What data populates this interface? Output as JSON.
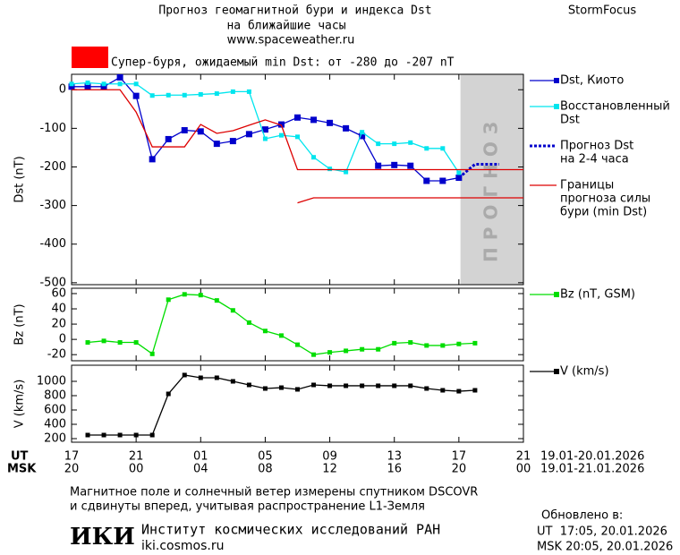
{
  "header": {
    "title": "Прогноз геомагнитной бури и индекса Dst",
    "subtitle": "на ближайшие часы",
    "url": "www.spaceweather.ru",
    "brand": "StormFocus"
  },
  "chart_data": [
    {
      "type": "line",
      "ylabel": "Dst (nT)",
      "banner": "Супер-буря, ожидаемый min Dst: от -280 до -207 nT",
      "banner_color": "#ff0000",
      "xlim": [
        0,
        28
      ],
      "ylim": [
        -505,
        40
      ],
      "yticks": [
        0,
        -100,
        -200,
        -300,
        -400,
        -500
      ],
      "forecast_band": [
        24.1,
        28
      ],
      "forecast_label": "ПРОГНОЗ",
      "band_color": "#d3d3d3",
      "series": [
        {
          "name": [
            "Dst, Киото"
          ],
          "color": "#0000cc",
          "marker": "square",
          "dash": false,
          "x": [
            0,
            1,
            2,
            3,
            4,
            5,
            6,
            7,
            8,
            9,
            10,
            11,
            12,
            13,
            14,
            15,
            16,
            17,
            18,
            19,
            20,
            21,
            22,
            23,
            24
          ],
          "values": [
            8,
            8,
            8,
            32,
            -16,
            -180,
            -128,
            -105,
            -108,
            -140,
            -133,
            -115,
            -103,
            -90,
            -72,
            -78,
            -86,
            -100,
            -120,
            -197,
            -195,
            -197,
            -236,
            -236,
            -228
          ]
        },
        {
          "name": [
            "Восстановленный",
            "Dst"
          ],
          "color": "#00e5ee",
          "marker": "small",
          "dash": false,
          "x": [
            0,
            1,
            2,
            3,
            4,
            5,
            6,
            7,
            8,
            9,
            10,
            11,
            12,
            13,
            14,
            15,
            16,
            17,
            18,
            19,
            20,
            21,
            22,
            23,
            24
          ],
          "values": [
            15,
            18,
            15,
            15,
            15,
            -15,
            -14,
            -14,
            -12,
            -10,
            -5,
            -5,
            -127,
            -118,
            -122,
            -175,
            -205,
            -213,
            -110,
            -140,
            -140,
            -137,
            -152,
            -152,
            -215
          ]
        },
        {
          "name": [
            "Прогноз Dst",
            "на 2-4 часа"
          ],
          "color": "#0000cc",
          "marker": "none",
          "dash": true,
          "x": [
            24,
            25,
            26.5
          ],
          "values": [
            -228,
            -193,
            -193
          ]
        },
        {
          "name": [
            "Границы",
            "прогноза силы",
            "бури (min Dst)"
          ],
          "color": "#dd0000",
          "marker": "none",
          "dash": false,
          "x": [
            0,
            3,
            4,
            5,
            7,
            8,
            9,
            10,
            11,
            12,
            13,
            14,
            28,
            null,
            14,
            15,
            28
          ],
          "values": [
            0,
            0,
            -58,
            -148,
            -148,
            -90,
            -113,
            -106,
            -92,
            -78,
            -92,
            -207,
            -207,
            null,
            -293,
            -280,
            -280
          ]
        }
      ]
    },
    {
      "type": "line",
      "ylabel": "Bz (nT)",
      "xlim": [
        0,
        28
      ],
      "ylim": [
        -28,
        67
      ],
      "yticks": [
        60,
        40,
        20,
        0,
        -20
      ],
      "series": [
        {
          "name": [
            "Bz (nT, GSM)"
          ],
          "color": "#00dd00",
          "marker": "small",
          "dash": false,
          "x": [
            1,
            2,
            3,
            4,
            5,
            6,
            7,
            8,
            9,
            10,
            11,
            12,
            13,
            14,
            15,
            16,
            17,
            18,
            19,
            20,
            21,
            22,
            23,
            24,
            25
          ],
          "values": [
            -4,
            -2,
            -4,
            -4,
            -19,
            52,
            59,
            58,
            51,
            38,
            22,
            11,
            5,
            -7,
            -20,
            -17,
            -15,
            -13,
            -13,
            -5,
            -4,
            -8,
            -8,
            -6,
            -5
          ]
        }
      ]
    },
    {
      "type": "line",
      "ylabel": "V (km/s)",
      "xlim": [
        0,
        28
      ],
      "ylim": [
        150,
        1225
      ],
      "yticks": [
        1000,
        800,
        600,
        400,
        200
      ],
      "xlabel_ut": "UT",
      "xlabel_msk": "MSK",
      "date_ut": "19.01-20.01.2026",
      "date_msk": "19.01-21.01.2026",
      "xticks": [
        {
          "value": 0,
          "label": "17"
        },
        {
          "value": 4,
          "label": "21"
        },
        {
          "value": 8,
          "label": "01"
        },
        {
          "value": 12,
          "label": "05"
        },
        {
          "value": 16,
          "label": "09"
        },
        {
          "value": 20,
          "label": "13"
        },
        {
          "value": 24,
          "label": "17"
        },
        {
          "value": 28,
          "label": "21"
        }
      ],
      "msk_labels": [
        "20",
        "00",
        "04",
        "08",
        "12",
        "16",
        "20",
        "00"
      ],
      "series": [
        {
          "name": [
            "V (km/s)"
          ],
          "color": "#000000",
          "marker": "small",
          "dash": false,
          "x": [
            1,
            2,
            3,
            4,
            5,
            6,
            7,
            8,
            9,
            10,
            11,
            12,
            13,
            14,
            15,
            16,
            17,
            18,
            19,
            20,
            21,
            22,
            23,
            24,
            25
          ],
          "values": [
            250,
            250,
            250,
            250,
            250,
            825,
            1088,
            1050,
            1050,
            1000,
            950,
            900,
            912,
            888,
            950,
            938,
            938,
            938,
            938,
            938,
            938,
            900,
            875,
            862,
            875
          ]
        }
      ]
    }
  ],
  "footer": {
    "note1": "Магнитное поле и солнечный ветер измерены спутником DSCOVR",
    "note2": "и сдвинуты вперед, учитывая распространение L1-Земля",
    "logo": "ИКИ",
    "institute": "Институт космических исследований РАН",
    "site": "iki.cosmos.ru",
    "updated": "Обновлено в:",
    "updated_ut": "UT  17:05, 20.01.2026",
    "updated_msk": "MSK 20:05, 20.01.2026"
  }
}
